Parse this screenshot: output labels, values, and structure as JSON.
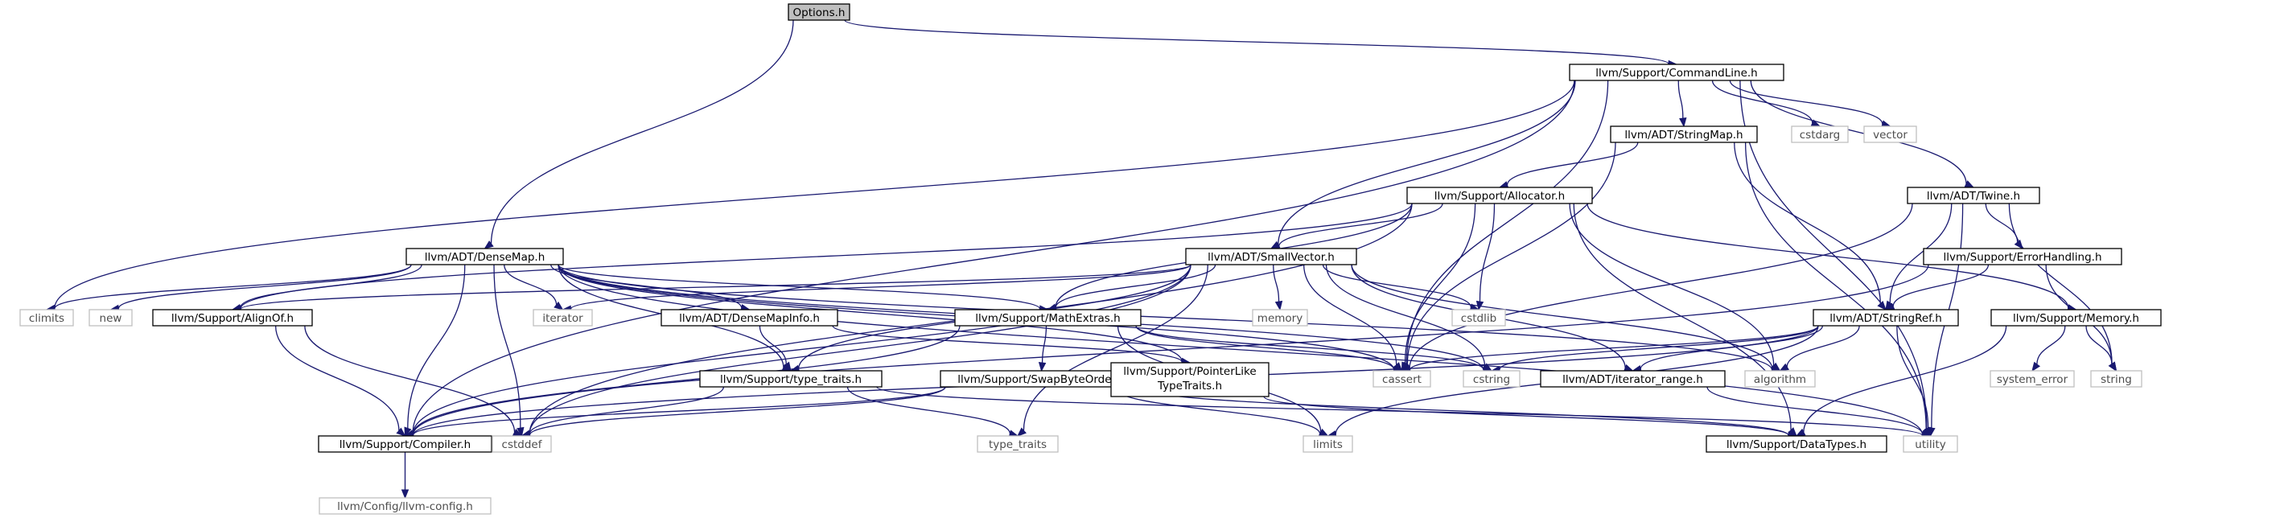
{
  "colors": {
    "edge": "#191970",
    "root_fill": "#bfbfbf",
    "system_border": "#bfbfbf",
    "system_text": "#4d4d4d"
  },
  "nodes": [
    {
      "id": "options",
      "label": "Options.h",
      "kind": "root"
    },
    {
      "id": "commandline",
      "label": "llvm/Support/CommandLine.h",
      "kind": "local"
    },
    {
      "id": "densemap",
      "label": "llvm/ADT/DenseMap.h",
      "kind": "local"
    },
    {
      "id": "stringmap",
      "label": "llvm/ADT/StringMap.h",
      "kind": "local"
    },
    {
      "id": "cstdarg",
      "label": "cstdarg",
      "kind": "system"
    },
    {
      "id": "vector",
      "label": "vector",
      "kind": "system"
    },
    {
      "id": "allocator",
      "label": "llvm/Support/Allocator.h",
      "kind": "local"
    },
    {
      "id": "twine",
      "label": "llvm/ADT/Twine.h",
      "kind": "local"
    },
    {
      "id": "smallvector",
      "label": "llvm/ADT/SmallVector.h",
      "kind": "local"
    },
    {
      "id": "errorhandling",
      "label": "llvm/Support/ErrorHandling.h",
      "kind": "local"
    },
    {
      "id": "climits",
      "label": "climits",
      "kind": "system"
    },
    {
      "id": "new",
      "label": "new",
      "kind": "system"
    },
    {
      "id": "alignof",
      "label": "llvm/Support/AlignOf.h",
      "kind": "local"
    },
    {
      "id": "iterator",
      "label": "iterator",
      "kind": "system"
    },
    {
      "id": "densemapinfo",
      "label": "llvm/ADT/DenseMapInfo.h",
      "kind": "local"
    },
    {
      "id": "mathextras",
      "label": "llvm/Support/MathExtras.h",
      "kind": "local"
    },
    {
      "id": "memory",
      "label": "memory",
      "kind": "system"
    },
    {
      "id": "cstdlib",
      "label": "cstdlib",
      "kind": "system"
    },
    {
      "id": "stringref",
      "label": "llvm/ADT/StringRef.h",
      "kind": "local"
    },
    {
      "id": "supportmemory",
      "label": "llvm/Support/Memory.h",
      "kind": "local"
    },
    {
      "id": "typetraits",
      "label": "llvm/Support/type_traits.h",
      "kind": "local"
    },
    {
      "id": "swapbyteorder",
      "label": "llvm/Support/SwapByteOrder.h",
      "kind": "local"
    },
    {
      "id": "pointerlike",
      "label": "llvm/Support/PointerLike\nTypeTraits.h",
      "kind": "local"
    },
    {
      "id": "cassert",
      "label": "cassert",
      "kind": "system"
    },
    {
      "id": "cstring",
      "label": "cstring",
      "kind": "system"
    },
    {
      "id": "iteratorrange",
      "label": "llvm/ADT/iterator_range.h",
      "kind": "local"
    },
    {
      "id": "algorithm",
      "label": "algorithm",
      "kind": "system"
    },
    {
      "id": "systemerror",
      "label": "system_error",
      "kind": "system"
    },
    {
      "id": "string",
      "label": "string",
      "kind": "system"
    },
    {
      "id": "compiler",
      "label": "llvm/Support/Compiler.h",
      "kind": "local"
    },
    {
      "id": "cstddef",
      "label": "cstddef",
      "kind": "system"
    },
    {
      "id": "stdtypetraits",
      "label": "type_traits",
      "kind": "system"
    },
    {
      "id": "limits",
      "label": "limits",
      "kind": "system"
    },
    {
      "id": "datatypes",
      "label": "llvm/Support/DataTypes.h",
      "kind": "local"
    },
    {
      "id": "utility",
      "label": "utility",
      "kind": "system"
    },
    {
      "id": "llvmconfig",
      "label": "llvm/Config/llvm-config.h",
      "kind": "system"
    }
  ],
  "edges": [
    [
      "options",
      "commandline"
    ],
    [
      "options",
      "densemap"
    ],
    [
      "commandline",
      "stringmap"
    ],
    [
      "commandline",
      "twine"
    ],
    [
      "commandline",
      "smallvector"
    ],
    [
      "commandline",
      "cstdarg"
    ],
    [
      "commandline",
      "vector"
    ],
    [
      "commandline",
      "utility"
    ],
    [
      "commandline",
      "climits"
    ],
    [
      "commandline",
      "compiler"
    ],
    [
      "commandline",
      "cassert"
    ],
    [
      "stringmap",
      "allocator"
    ],
    [
      "stringmap",
      "stringref"
    ],
    [
      "stringmap",
      "cassert"
    ],
    [
      "stringmap",
      "utility"
    ],
    [
      "allocator",
      "smallvector"
    ],
    [
      "allocator",
      "alignof"
    ],
    [
      "allocator",
      "mathextras"
    ],
    [
      "allocator",
      "supportmemory"
    ],
    [
      "allocator",
      "cstddef"
    ],
    [
      "allocator",
      "cstdlib"
    ],
    [
      "allocator",
      "cassert"
    ],
    [
      "allocator",
      "algorithm"
    ],
    [
      "allocator",
      "datatypes"
    ],
    [
      "twine",
      "errorhandling"
    ],
    [
      "twine",
      "stringref"
    ],
    [
      "twine",
      "string"
    ],
    [
      "twine",
      "cassert"
    ],
    [
      "twine",
      "utility"
    ],
    [
      "errorhandling",
      "stringref"
    ],
    [
      "errorhandling",
      "string"
    ],
    [
      "errorhandling",
      "compiler"
    ],
    [
      "densemap",
      "climits"
    ],
    [
      "densemap",
      "new"
    ],
    [
      "densemap",
      "alignof"
    ],
    [
      "densemap",
      "iterator"
    ],
    [
      "densemap",
      "densemapinfo"
    ],
    [
      "densemap",
      "mathextras"
    ],
    [
      "densemap",
      "pointerlike"
    ],
    [
      "densemap",
      "typetraits"
    ],
    [
      "densemap",
      "compiler"
    ],
    [
      "densemap",
      "cstddef"
    ],
    [
      "densemap",
      "cassert"
    ],
    [
      "densemap",
      "utility"
    ],
    [
      "densemap",
      "algorithm"
    ],
    [
      "densemap",
      "cstring"
    ],
    [
      "smallvector",
      "alignof"
    ],
    [
      "smallvector",
      "iterator"
    ],
    [
      "smallvector",
      "mathextras"
    ],
    [
      "smallvector",
      "memory"
    ],
    [
      "smallvector",
      "cstdlib"
    ],
    [
      "smallvector",
      "iteratorrange"
    ],
    [
      "smallvector",
      "typetraits"
    ],
    [
      "smallvector",
      "compiler"
    ],
    [
      "smallvector",
      "cstddef"
    ],
    [
      "smallvector",
      "cassert"
    ],
    [
      "smallvector",
      "cstring"
    ],
    [
      "smallvector",
      "algorithm"
    ],
    [
      "smallvector",
      "stdtypetraits"
    ],
    [
      "alignof",
      "compiler"
    ],
    [
      "alignof",
      "cstddef"
    ],
    [
      "densemapinfo",
      "typetraits"
    ],
    [
      "densemapinfo",
      "pointerlike"
    ],
    [
      "mathextras",
      "swapbyteorder"
    ],
    [
      "mathextras",
      "compiler"
    ],
    [
      "mathextras",
      "cassert"
    ],
    [
      "mathextras",
      "cstring"
    ],
    [
      "mathextras",
      "limits"
    ],
    [
      "stringref",
      "iteratorrange"
    ],
    [
      "stringref",
      "cassert"
    ],
    [
      "stringref",
      "cstring"
    ],
    [
      "stringref",
      "algorithm"
    ],
    [
      "stringref",
      "limits"
    ],
    [
      "stringref",
      "utility"
    ],
    [
      "stringref",
      "compiler"
    ],
    [
      "supportmemory",
      "datatypes"
    ],
    [
      "supportmemory",
      "systemerror"
    ],
    [
      "supportmemory",
      "string"
    ],
    [
      "typetraits",
      "stdtypetraits"
    ],
    [
      "typetraits",
      "utility"
    ],
    [
      "typetraits",
      "cstddef"
    ],
    [
      "swapbyteorder",
      "compiler"
    ],
    [
      "swapbyteorder",
      "datatypes"
    ],
    [
      "swapbyteorder",
      "cstddef"
    ],
    [
      "swapbyteorder",
      "limits"
    ],
    [
      "pointerlike",
      "datatypes"
    ],
    [
      "iteratorrange",
      "utility"
    ],
    [
      "compiler",
      "llvmconfig"
    ]
  ]
}
